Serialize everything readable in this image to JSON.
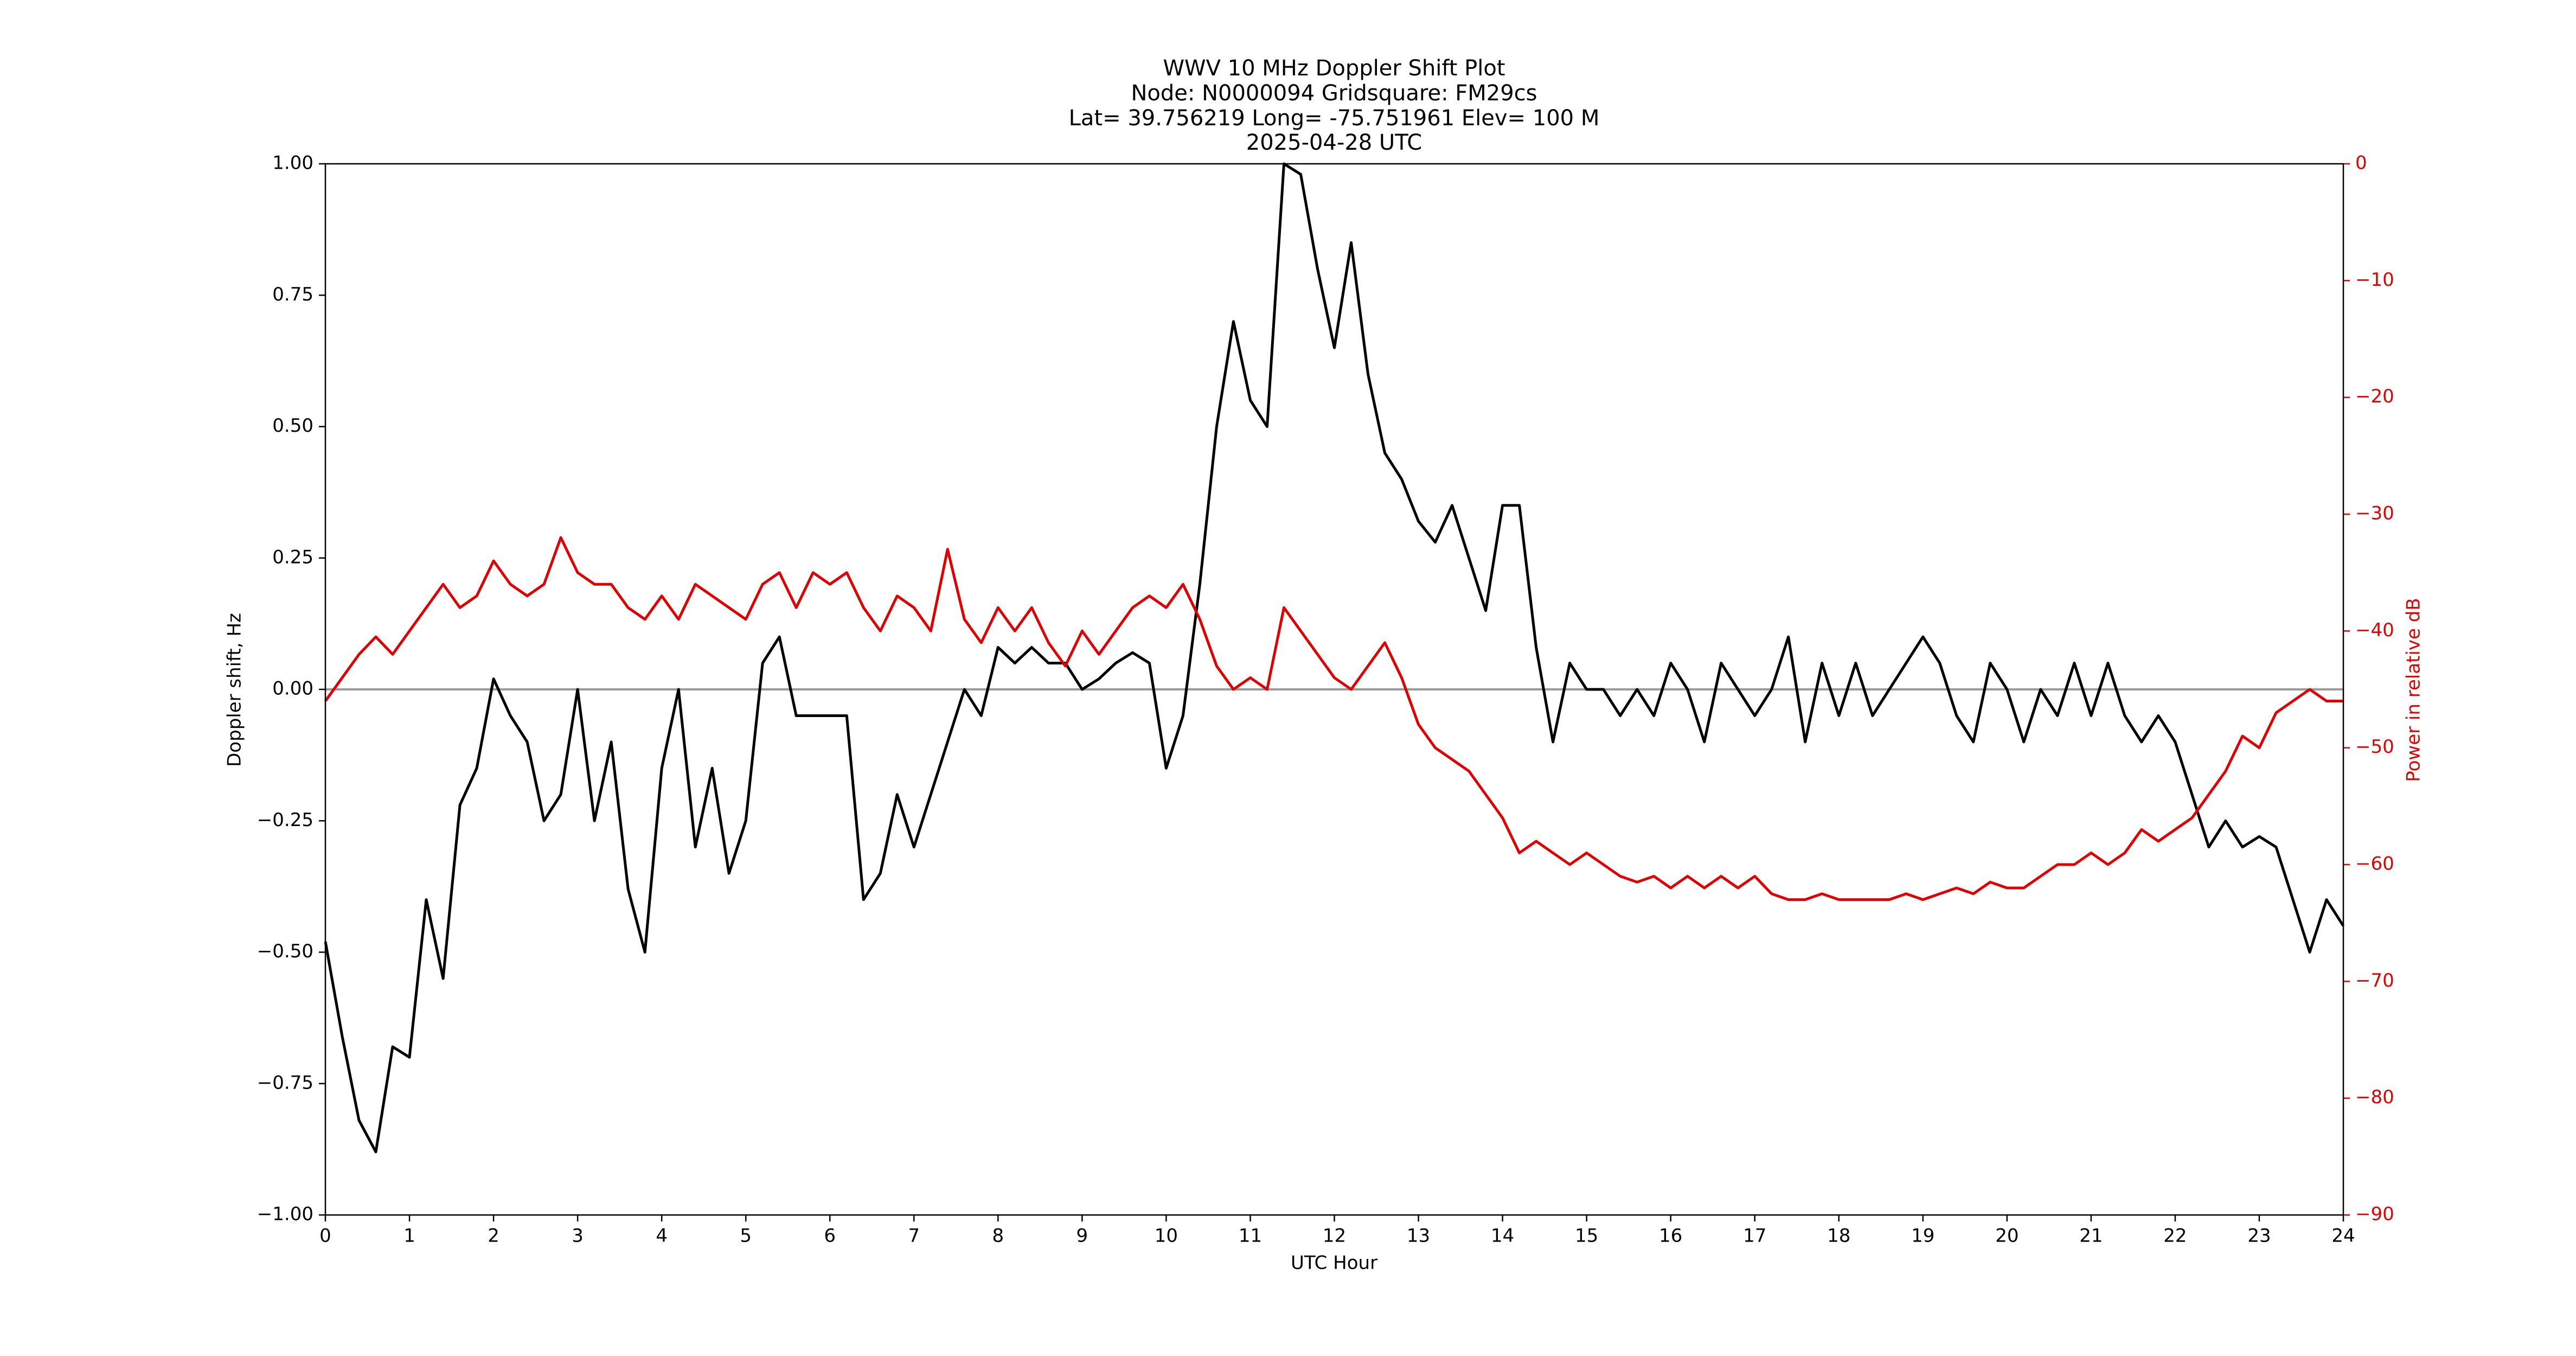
{
  "chart_data": {
    "type": "line",
    "title": [
      "WWV 10 MHz Doppler Shift Plot",
      "Node:  N0000094     Gridsquare:  FM29cs",
      "Lat= 39.756219    Long= -75.751961    Elev= 100 M",
      "2025-04-28  UTC"
    ],
    "x_label": "UTC Hour",
    "y_label": "Doppler shift, Hz",
    "y2_label": "Power in relative dB",
    "xlim": [
      0,
      24
    ],
    "xticks": [
      0,
      1,
      2,
      3,
      4,
      5,
      6,
      7,
      8,
      9,
      10,
      11,
      12,
      13,
      14,
      15,
      16,
      17,
      18,
      19,
      20,
      21,
      22,
      23,
      24
    ],
    "ylim": [
      -1,
      1
    ],
    "yticks": [
      {
        "value": -1,
        "label": "−1.00"
      },
      {
        "value": -0.75,
        "label": "−0.75"
      },
      {
        "value": -0.5,
        "label": "−0.50"
      },
      {
        "value": -0.25,
        "label": "−0.25"
      },
      {
        "value": 0,
        "label": "0.00"
      },
      {
        "value": 0.25,
        "label": "0.25"
      },
      {
        "value": 0.5,
        "label": "0.50"
      },
      {
        "value": 0.75,
        "label": "0.75"
      },
      {
        "value": 1,
        "label": "1.00"
      }
    ],
    "y2lim": [
      -90,
      0
    ],
    "y2ticks": [
      {
        "value": -90,
        "label": "−90"
      },
      {
        "value": -80,
        "label": "−80"
      },
      {
        "value": -70,
        "label": "−70"
      },
      {
        "value": -60,
        "label": "−60"
      },
      {
        "value": -50,
        "label": "−50"
      },
      {
        "value": -40,
        "label": "−40"
      },
      {
        "value": -30,
        "label": "−30"
      },
      {
        "value": -20,
        "label": "−20"
      },
      {
        "value": -10,
        "label": "−10"
      },
      0
    ],
    "y2_color": "#e00000",
    "reference_line": 0,
    "reference_color": "#999999",
    "x": [
      0,
      0.2,
      0.4,
      0.6,
      0.8,
      1,
      1.2,
      1.4,
      1.6,
      1.8,
      2,
      2.2,
      2.4,
      2.6,
      2.8,
      3,
      3.2,
      3.4,
      3.6,
      3.8,
      4,
      4.2,
      4.4,
      4.6,
      4.8,
      5,
      5.2,
      5.4,
      5.6,
      5.8,
      6,
      6.2,
      6.4,
      6.6,
      6.8,
      7,
      7.2,
      7.4,
      7.6,
      7.8,
      8,
      8.2,
      8.4,
      8.6,
      8.8,
      9,
      9.2,
      9.4,
      9.6,
      9.8,
      10,
      10.2,
      10.4,
      10.6,
      10.8,
      11,
      11.2,
      11.4,
      11.6,
      11.8,
      12,
      12.2,
      12.4,
      12.6,
      12.8,
      13,
      13.2,
      13.4,
      13.6,
      13.8,
      14,
      14.2,
      14.4,
      14.6,
      14.8,
      15,
      15.2,
      15.4,
      15.6,
      15.8,
      16,
      16.2,
      16.4,
      16.6,
      16.8,
      17,
      17.2,
      17.4,
      17.6,
      17.8,
      18,
      18.2,
      18.4,
      18.6,
      18.8,
      19,
      19.2,
      19.4,
      19.6,
      19.8,
      20,
      20.2,
      20.4,
      20.6,
      20.8,
      21,
      21.2,
      21.4,
      21.6,
      21.8,
      22,
      22.2,
      22.4,
      22.6,
      22.8,
      23,
      23.2,
      23.4,
      23.6,
      23.8,
      24
    ],
    "series": [
      {
        "color": "#000000",
        "axis": "y",
        "values": [
          -0.48,
          -0.66,
          -0.82,
          -0.88,
          -0.68,
          -0.7,
          -0.4,
          -0.55,
          -0.22,
          -0.15,
          0.02,
          -0.05,
          -0.1,
          -0.25,
          -0.2,
          0,
          -0.25,
          -0.1,
          -0.38,
          -0.5,
          -0.15,
          0,
          -0.3,
          -0.15,
          -0.35,
          -0.25,
          0.05,
          0.1,
          -0.05,
          -0.05,
          -0.05,
          -0.05,
          -0.4,
          -0.35,
          -0.2,
          -0.3,
          -0.2,
          -0.1,
          0,
          -0.05,
          0.08,
          0.05,
          0.08,
          0.05,
          0.05,
          0,
          0.02,
          0.05,
          0.07,
          0.05,
          -0.15,
          -0.05,
          0.2,
          0.5,
          0.7,
          0.55,
          0.5,
          1,
          0.98,
          0.8,
          0.65,
          0.85,
          0.6,
          0.45,
          0.4,
          0.32,
          0.28,
          0.35,
          0.25,
          0.15,
          0.35,
          0.35,
          0.08,
          -0.1,
          0.05,
          0,
          0,
          -0.05,
          0,
          -0.05,
          0.05,
          0,
          -0.1,
          0.05,
          0,
          -0.05,
          0,
          0.1,
          -0.1,
          0.05,
          -0.05,
          0.05,
          -0.05,
          0,
          0.05,
          0.1,
          0.05,
          -0.05,
          -0.1,
          0.05,
          0,
          -0.1,
          0,
          -0.05,
          0.05,
          -0.05,
          0.05,
          -0.05,
          -0.1,
          -0.05,
          -0.1,
          -0.2,
          -0.3,
          -0.25,
          -0.3,
          -0.28,
          -0.3,
          -0.4,
          -0.5,
          -0.4,
          -0.45
        ]
      },
      {
        "color": "#e00000",
        "axis": "y2",
        "values": [
          -46,
          -44,
          -42,
          -40.5,
          -42,
          -40,
          -38,
          -36,
          -38,
          -37,
          -34,
          -36,
          -37,
          -36,
          -32,
          -35,
          -36,
          -36,
          -38,
          -39,
          -37,
          -39,
          -36,
          -37,
          -38,
          -39,
          -36,
          -35,
          -38,
          -35,
          -36,
          -35,
          -38,
          -40,
          -37,
          -38,
          -40,
          -33,
          -39,
          -41,
          -38,
          -40,
          -38,
          -41,
          -43,
          -40,
          -42,
          -40,
          -38,
          -37,
          -38,
          -36,
          -39,
          -43,
          -45,
          -44,
          -45,
          -38,
          -40,
          -42,
          -44,
          -45,
          -43,
          -41,
          -44,
          -48,
          -50,
          -51,
          -52,
          -54,
          -56,
          -59,
          -58,
          -59,
          -60,
          -59,
          -60,
          -61,
          -61.5,
          -61,
          -62,
          -61,
          -62,
          -61,
          -62,
          -61,
          -62.5,
          -63,
          -63,
          -62.5,
          -63,
          -63,
          -63,
          -63,
          -62.5,
          -63,
          -62.5,
          -62,
          -62.5,
          -61.5,
          -62,
          -62,
          -61,
          -60,
          -60,
          -59,
          -60,
          -59,
          -57,
          -58,
          -57,
          -56,
          -54,
          -52,
          -49,
          -50,
          -47,
          -46,
          -45,
          -46,
          -46
        ]
      }
    ]
  }
}
